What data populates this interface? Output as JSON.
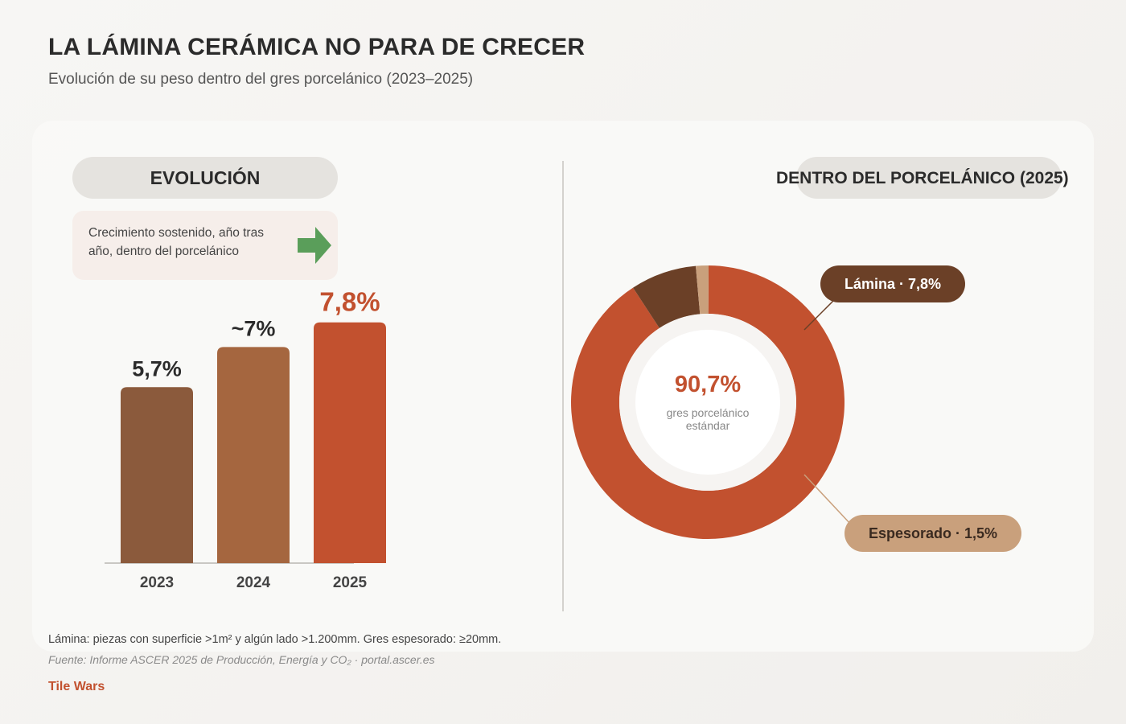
{
  "header": {
    "title": "LA LÁMINA CERÁMICA NO PARA DE CRECER",
    "subtitle": "Evolución de su peso dentro del gres porcelánico (2023–2025)"
  },
  "left_panel": {
    "heading": "EVOLUCIÓN",
    "note": "Crecimiento sostenido, año tras año, dentro del porcelánico",
    "arrow_icon": "arrow-right-icon",
    "arrow_color": "#5a9e5a"
  },
  "right_panel": {
    "heading": "DENTRO DEL PORCELÁNICO (2025)",
    "center_value": "90,7%",
    "center_label": "gres porcelánico estándar",
    "callout_lamina": "Lámina · 7,8%",
    "callout_espesorado": "Espesorado · 1,5%"
  },
  "footer": {
    "definition": "Lámina: piezas con superficie >1m² y algún lado >1.200mm. Gres espesorado: ≥20mm.",
    "source": "Fuente: Informe ASCER 2025 de Producción, Energía y CO₂ · portal.ascer.es",
    "brand": "Tile Wars"
  },
  "chart_data": [
    {
      "type": "bar",
      "categories": [
        "2023",
        "2024",
        "2025"
      ],
      "values": [
        5.7,
        7.0,
        7.8
      ],
      "value_labels": [
        "5,7%",
        "~7%",
        "7,8%"
      ],
      "colors": [
        "#8b5a3c",
        "#a5663f",
        "#c2512f"
      ],
      "label_colors": [
        "#2b2b2b",
        "#2b2b2b",
        "#c2512f"
      ],
      "title": "",
      "xlabel": "",
      "ylabel": "",
      "ylim": [
        0,
        8.6
      ],
      "grid": false
    },
    {
      "type": "pie",
      "donut": true,
      "labels": [
        "Gres porcelánico estándar",
        "Lámina",
        "Espesorado"
      ],
      "values": [
        90.7,
        7.8,
        1.5
      ],
      "value_labels": [
        "90,7%",
        "7,8%",
        "1,5%"
      ],
      "colors": [
        "#c2512f",
        "#6b4027",
        "#c9a07c"
      ]
    }
  ]
}
